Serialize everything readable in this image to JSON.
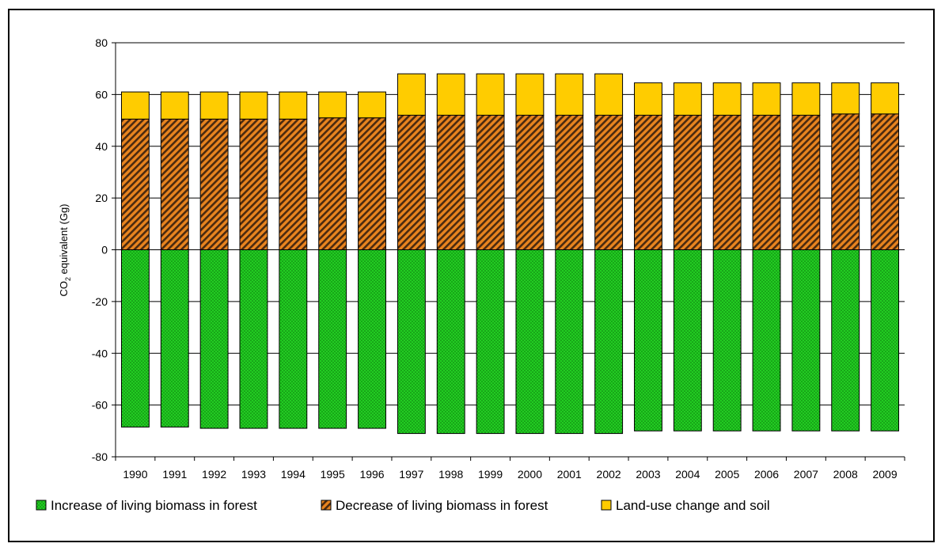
{
  "chart_data": {
    "type": "bar",
    "stacked": true,
    "categories": [
      "1990",
      "1991",
      "1992",
      "1993",
      "1994",
      "1995",
      "1996",
      "1997",
      "1998",
      "1999",
      "2000",
      "2001",
      "2002",
      "2003",
      "2004",
      "2005",
      "2006",
      "2007",
      "2008",
      "2009"
    ],
    "series": [
      {
        "name": "Increase of living biomass in forest",
        "color": "#22cc22",
        "pattern": "dots",
        "values": [
          -68.5,
          -68.5,
          -69,
          -69,
          -69,
          -69,
          -69,
          -71,
          -71,
          -71,
          -71,
          -71,
          -71,
          -70,
          -70,
          -70,
          -70,
          -70,
          -70,
          -70
        ]
      },
      {
        "name": "Decrease of living biomass in forest",
        "color": "#e07a1f",
        "pattern": "diagonal-stripes",
        "values": [
          50.5,
          50.5,
          50.5,
          50.5,
          50.5,
          51,
          51,
          52,
          52,
          52,
          52,
          52,
          52,
          52,
          52,
          52,
          52,
          52,
          52.5,
          52.5
        ]
      },
      {
        "name": "Land-use change and soil",
        "color": "#ffcc00",
        "pattern": "solid",
        "values": [
          10.5,
          10.5,
          10.5,
          10.5,
          10.5,
          10,
          10,
          16,
          16,
          16,
          16,
          16,
          16,
          12.5,
          12.5,
          12.5,
          12.5,
          12.5,
          12,
          12
        ]
      }
    ],
    "title": "",
    "ylabel_main": "CO",
    "ylabel_sub": "2",
    "ylabel_rest": " equivalent (Gg)",
    "ylim": [
      -80,
      80
    ],
    "yticks": [
      "80",
      "60",
      "40",
      "20",
      "0",
      "-20",
      "-40",
      "-60",
      "-80"
    ],
    "grid": true,
    "legend_position": "bottom"
  }
}
